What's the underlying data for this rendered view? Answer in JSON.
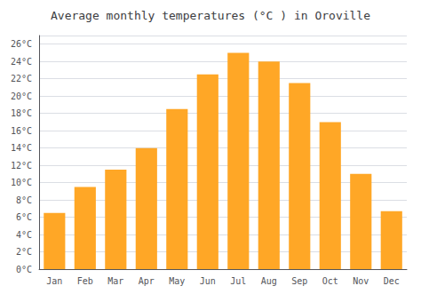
{
  "chart_data": {
    "type": "bar",
    "title": "Average monthly temperatures (°C ) in Oroville",
    "categories": [
      "Jan",
      "Feb",
      "Mar",
      "Apr",
      "May",
      "Jun",
      "Jul",
      "Aug",
      "Sep",
      "Oct",
      "Nov",
      "Dec"
    ],
    "values": [
      6.5,
      9.5,
      11.5,
      14.0,
      18.5,
      22.5,
      25.0,
      24.0,
      21.5,
      17.0,
      11.0,
      6.7
    ],
    "color": "#FFA726",
    "ylim": [
      0,
      27
    ],
    "yticks": [
      {
        "value": 0,
        "label": "0°C"
      },
      {
        "value": 2,
        "label": "2°C"
      },
      {
        "value": 4,
        "label": "4°C"
      },
      {
        "value": 6,
        "label": "6°C"
      },
      {
        "value": 8,
        "label": "8°C"
      },
      {
        "value": 10,
        "label": "10°C"
      },
      {
        "value": 12,
        "label": "12°C"
      },
      {
        "value": 14,
        "label": "14°C"
      },
      {
        "value": 16,
        "label": "16°C"
      },
      {
        "value": 18,
        "label": "18°C"
      },
      {
        "value": 20,
        "label": "20°C"
      },
      {
        "value": 22,
        "label": "22°C"
      },
      {
        "value": 24,
        "label": "24°C"
      },
      {
        "value": 26,
        "label": "26°C"
      }
    ],
    "grid": true
  }
}
